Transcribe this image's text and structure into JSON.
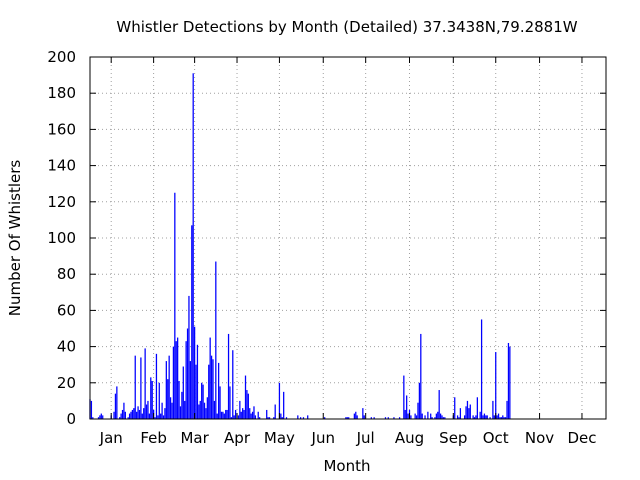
{
  "chart_data": {
    "type": "bar",
    "title": "Whistler Detections by Month (Detailed) 37.3438N,79.2881W",
    "xlabel": "Month",
    "ylabel": "Number Of Whistlers",
    "ylim": [
      0,
      200
    ],
    "yticks": [
      0,
      20,
      40,
      60,
      80,
      100,
      120,
      140,
      160,
      180,
      200
    ],
    "xlim_day": [
      1,
      366
    ],
    "month_ticks": [
      {
        "label": "Jan",
        "day": 16
      },
      {
        "label": "Feb",
        "day": 46
      },
      {
        "label": "Mar",
        "day": 75
      },
      {
        "label": "Apr",
        "day": 105
      },
      {
        "label": "May",
        "day": 135
      },
      {
        "label": "Jun",
        "day": 166
      },
      {
        "label": "Jul",
        "day": 196
      },
      {
        "label": "Aug",
        "day": 227
      },
      {
        "label": "Sep",
        "day": 258
      },
      {
        "label": "Oct",
        "day": 288
      },
      {
        "label": "Nov",
        "day": 319
      },
      {
        "label": "Dec",
        "day": 349
      }
    ],
    "grid": true,
    "bar_color": "#0000ff",
    "bars": [
      [
        1,
        11
      ],
      [
        2,
        10
      ],
      [
        3,
        1
      ],
      [
        7,
        1
      ],
      [
        8,
        2
      ],
      [
        9,
        3
      ],
      [
        10,
        2
      ],
      [
        16,
        2
      ],
      [
        18,
        4
      ],
      [
        19,
        14
      ],
      [
        20,
        18
      ],
      [
        22,
        1
      ],
      [
        23,
        3
      ],
      [
        24,
        5
      ],
      [
        25,
        9
      ],
      [
        26,
        4
      ],
      [
        28,
        1
      ],
      [
        29,
        3
      ],
      [
        30,
        4
      ],
      [
        31,
        5
      ],
      [
        32,
        6
      ],
      [
        33,
        35
      ],
      [
        34,
        4
      ],
      [
        35,
        7
      ],
      [
        36,
        5
      ],
      [
        37,
        34
      ],
      [
        38,
        3
      ],
      [
        39,
        6
      ],
      [
        40,
        39
      ],
      [
        41,
        8
      ],
      [
        42,
        10
      ],
      [
        43,
        3
      ],
      [
        44,
        23
      ],
      [
        45,
        21
      ],
      [
        46,
        5
      ],
      [
        47,
        1
      ],
      [
        48,
        36
      ],
      [
        49,
        2
      ],
      [
        50,
        20
      ],
      [
        51,
        3
      ],
      [
        52,
        9
      ],
      [
        53,
        2
      ],
      [
        54,
        6
      ],
      [
        55,
        32
      ],
      [
        56,
        22
      ],
      [
        57,
        35
      ],
      [
        58,
        12
      ],
      [
        59,
        9
      ],
      [
        60,
        40
      ],
      [
        61,
        125
      ],
      [
        62,
        43
      ],
      [
        63,
        45
      ],
      [
        64,
        21
      ],
      [
        65,
        7
      ],
      [
        66,
        15
      ],
      [
        67,
        29
      ],
      [
        68,
        10
      ],
      [
        69,
        43
      ],
      [
        70,
        50
      ],
      [
        71,
        68
      ],
      [
        72,
        32
      ],
      [
        73,
        107
      ],
      [
        74,
        191
      ],
      [
        75,
        51
      ],
      [
        76,
        30
      ],
      [
        77,
        41
      ],
      [
        78,
        8
      ],
      [
        79,
        10
      ],
      [
        80,
        20
      ],
      [
        81,
        19
      ],
      [
        82,
        9
      ],
      [
        83,
        6
      ],
      [
        84,
        12
      ],
      [
        85,
        30
      ],
      [
        86,
        45
      ],
      [
        87,
        35
      ],
      [
        88,
        33
      ],
      [
        89,
        10
      ],
      [
        90,
        87
      ],
      [
        91,
        3
      ],
      [
        92,
        31
      ],
      [
        93,
        18
      ],
      [
        94,
        4
      ],
      [
        95,
        4
      ],
      [
        96,
        3
      ],
      [
        97,
        5
      ],
      [
        98,
        5
      ],
      [
        99,
        47
      ],
      [
        100,
        18
      ],
      [
        101,
        1
      ],
      [
        102,
        38
      ],
      [
        103,
        2
      ],
      [
        104,
        5
      ],
      [
        106,
        2
      ],
      [
        107,
        10
      ],
      [
        108,
        4
      ],
      [
        109,
        6
      ],
      [
        110,
        5
      ],
      [
        111,
        24
      ],
      [
        112,
        16
      ],
      [
        113,
        14
      ],
      [
        114,
        6
      ],
      [
        115,
        3
      ],
      [
        116,
        4
      ],
      [
        117,
        7
      ],
      [
        118,
        2
      ],
      [
        120,
        4
      ],
      [
        121,
        1
      ],
      [
        126,
        5
      ],
      [
        127,
        1
      ],
      [
        128,
        1
      ],
      [
        131,
        1
      ],
      [
        132,
        8
      ],
      [
        135,
        20
      ],
      [
        136,
        3
      ],
      [
        137,
        1
      ],
      [
        138,
        15
      ],
      [
        140,
        1
      ],
      [
        148,
        2
      ],
      [
        150,
        1
      ],
      [
        152,
        1
      ],
      [
        155,
        2
      ],
      [
        167,
        1
      ],
      [
        182,
        1
      ],
      [
        183,
        1
      ],
      [
        184,
        1
      ],
      [
        188,
        3
      ],
      [
        189,
        4
      ],
      [
        190,
        2
      ],
      [
        194,
        6
      ],
      [
        195,
        2
      ],
      [
        200,
        1
      ],
      [
        202,
        1
      ],
      [
        210,
        1
      ],
      [
        212,
        1
      ],
      [
        216,
        1
      ],
      [
        220,
        1
      ],
      [
        223,
        24
      ],
      [
        224,
        5
      ],
      [
        225,
        13
      ],
      [
        226,
        3
      ],
      [
        227,
        5
      ],
      [
        228,
        2
      ],
      [
        231,
        3
      ],
      [
        232,
        2
      ],
      [
        233,
        9
      ],
      [
        234,
        20
      ],
      [
        235,
        47
      ],
      [
        236,
        3
      ],
      [
        238,
        2
      ],
      [
        240,
        4
      ],
      [
        242,
        3
      ],
      [
        243,
        1
      ],
      [
        245,
        1
      ],
      [
        246,
        3
      ],
      [
        247,
        4
      ],
      [
        248,
        16
      ],
      [
        249,
        3
      ],
      [
        250,
        2
      ],
      [
        251,
        1
      ],
      [
        252,
        1
      ],
      [
        258,
        2
      ],
      [
        259,
        12
      ],
      [
        261,
        2
      ],
      [
        262,
        1
      ],
      [
        263,
        6
      ],
      [
        266,
        2
      ],
      [
        267,
        7
      ],
      [
        268,
        10
      ],
      [
        269,
        6
      ],
      [
        270,
        8
      ],
      [
        272,
        2
      ],
      [
        273,
        1
      ],
      [
        274,
        2
      ],
      [
        275,
        12
      ],
      [
        277,
        4
      ],
      [
        278,
        55
      ],
      [
        279,
        2
      ],
      [
        280,
        3
      ],
      [
        281,
        2
      ],
      [
        282,
        2
      ],
      [
        284,
        1
      ],
      [
        286,
        10
      ],
      [
        287,
        2
      ],
      [
        288,
        37
      ],
      [
        289,
        2
      ],
      [
        290,
        3
      ],
      [
        291,
        1
      ],
      [
        292,
        1
      ],
      [
        293,
        2
      ],
      [
        294,
        1
      ],
      [
        295,
        1
      ],
      [
        296,
        10
      ],
      [
        297,
        42
      ],
      [
        298,
        40
      ]
    ]
  }
}
